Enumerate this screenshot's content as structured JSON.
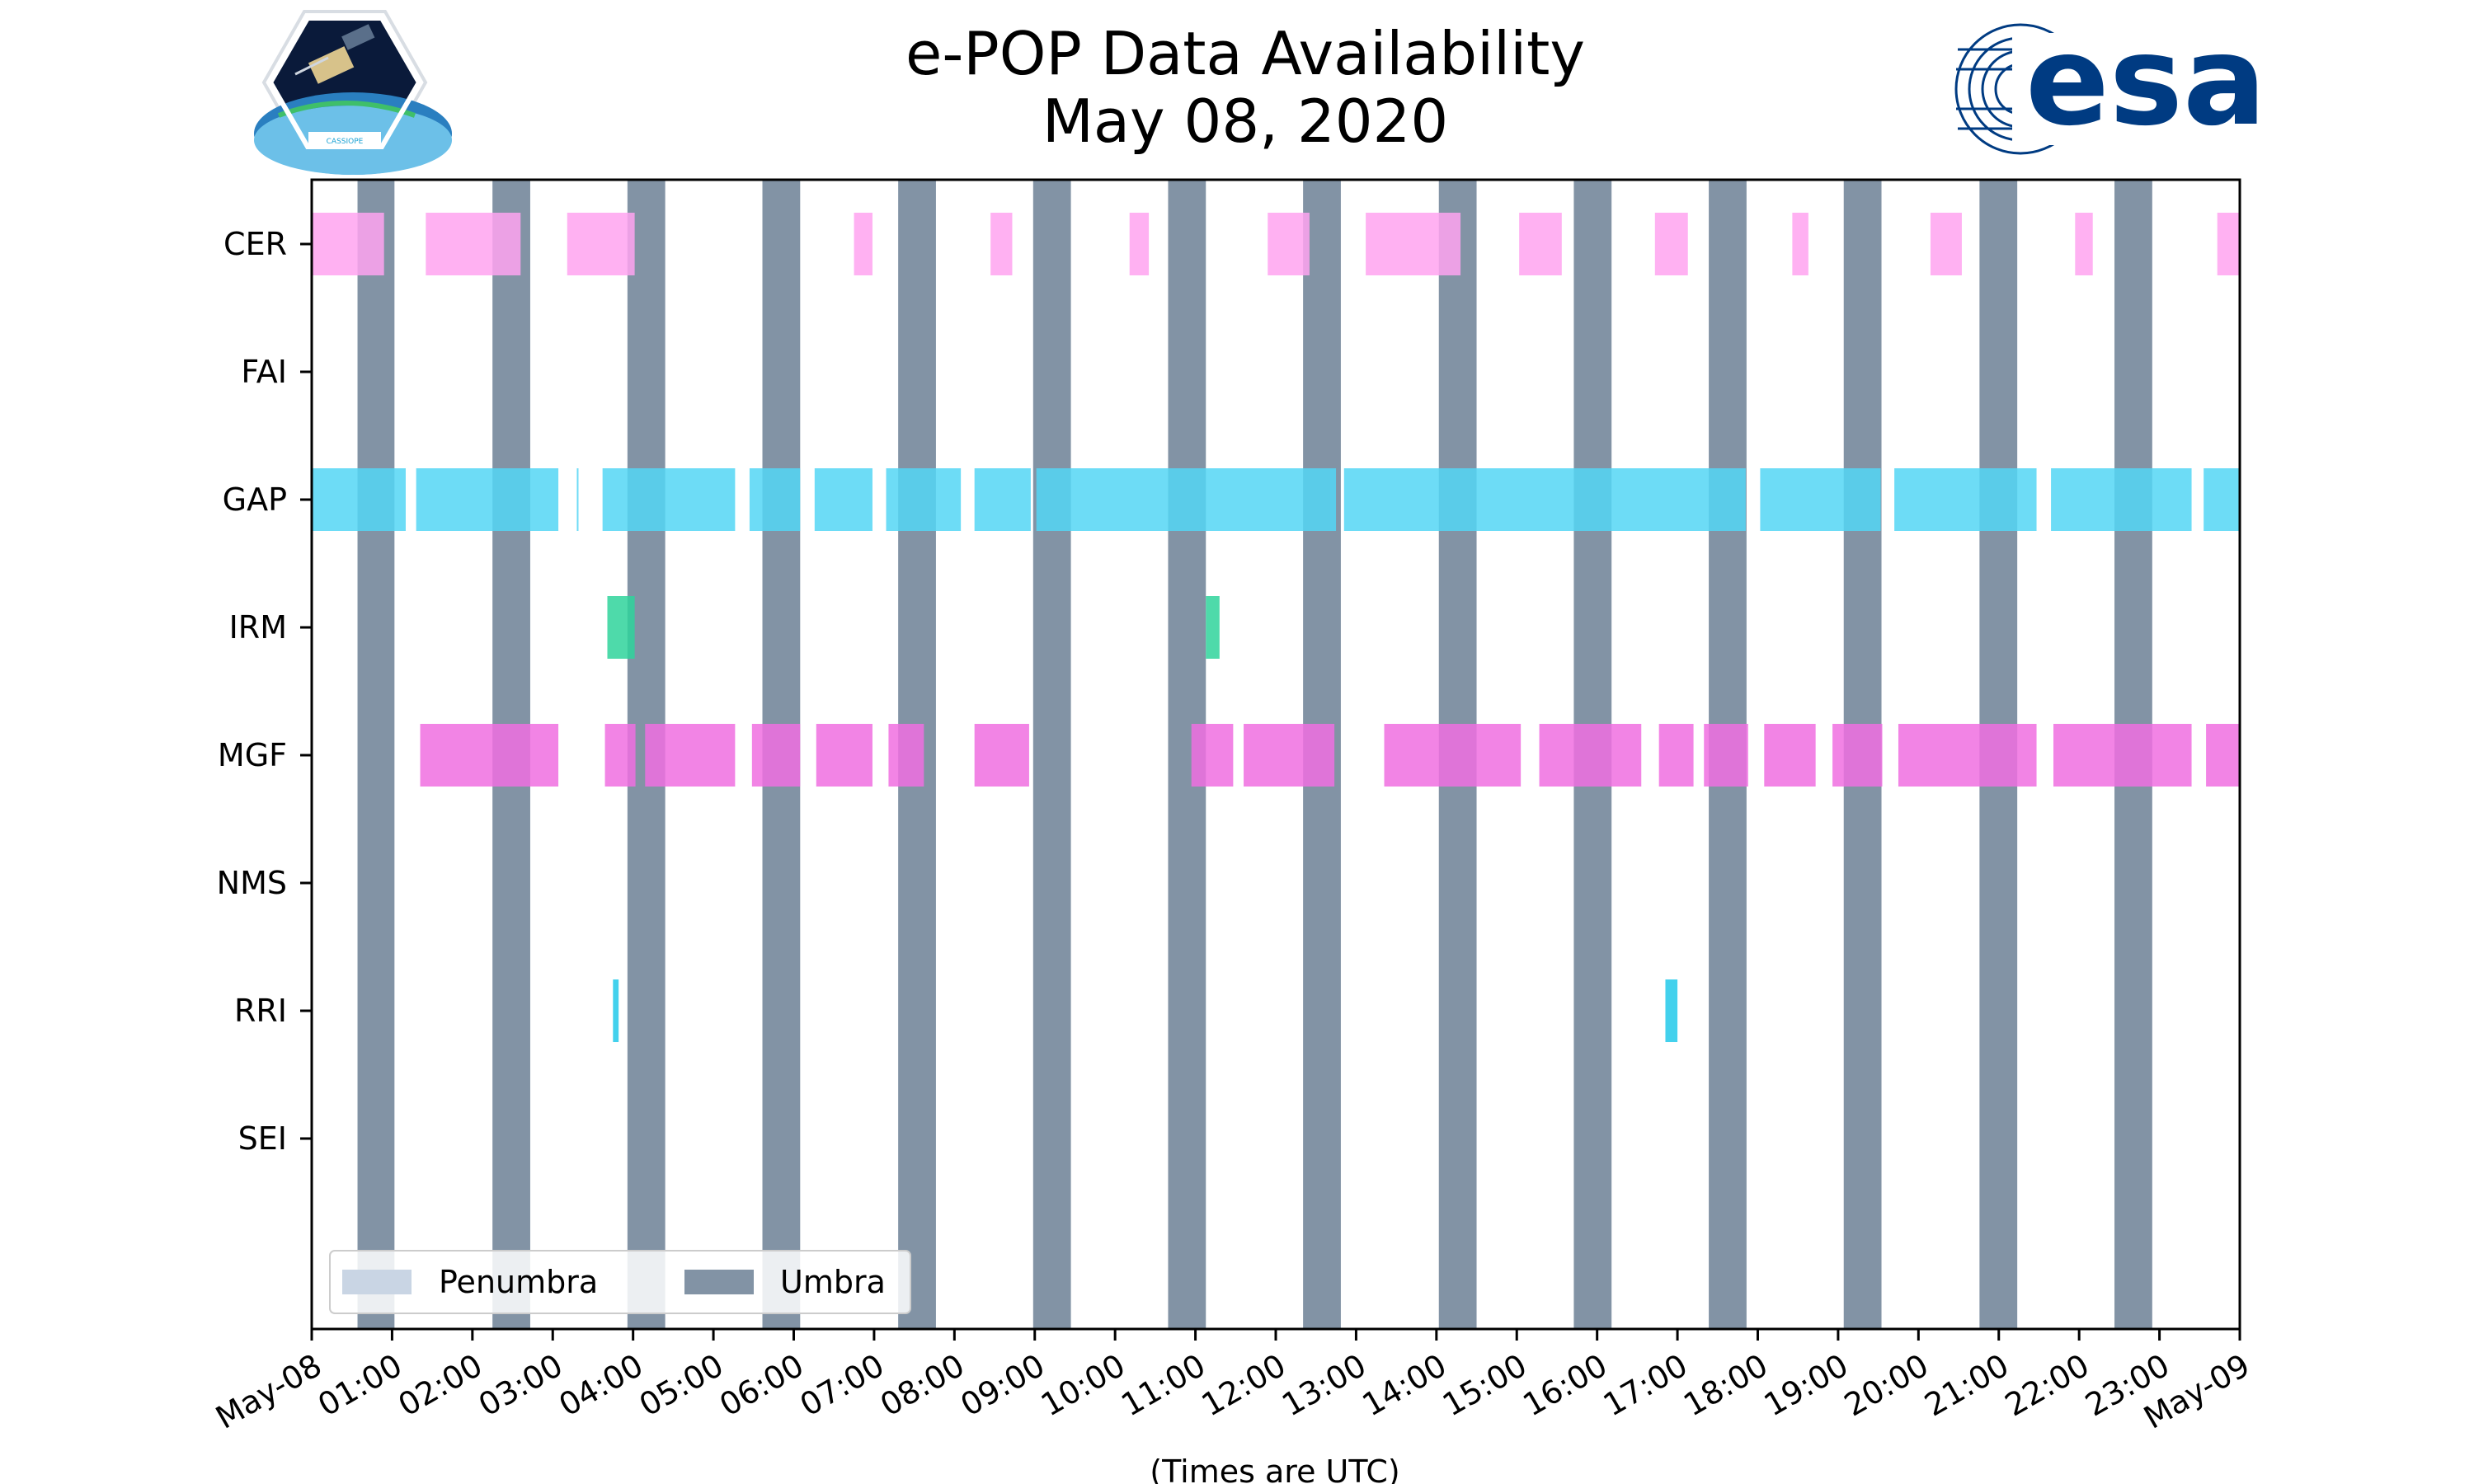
{
  "header": {
    "title_line1": "e-POP Data Availability",
    "title_line2": "May 08, 2020",
    "logo_left_text": "CASSIOPE",
    "logo_right_text": "esa"
  },
  "colors": {
    "umbra": "#8293a5",
    "penumbra": "#c9d5e4",
    "CER": "#ffa3f0",
    "GAP": "#53d6f5",
    "IRM": "#2fd39b",
    "MGF": "#f06fe0",
    "RRI": "#22c9ea",
    "esa_blue": "#003b82"
  },
  "chart_data": {
    "type": "timeline",
    "title": "e-POP Data Availability May 08, 2020",
    "xlabel": "(Times are UTC)",
    "x_unit": "hours",
    "xlim": [
      0,
      24
    ],
    "x_ticks": [
      {
        "value": 0,
        "label": "May-08"
      },
      {
        "value": 1,
        "label": "01:00"
      },
      {
        "value": 2,
        "label": "02:00"
      },
      {
        "value": 3,
        "label": "03:00"
      },
      {
        "value": 4,
        "label": "04:00"
      },
      {
        "value": 5,
        "label": "05:00"
      },
      {
        "value": 6,
        "label": "06:00"
      },
      {
        "value": 7,
        "label": "07:00"
      },
      {
        "value": 8,
        "label": "08:00"
      },
      {
        "value": 9,
        "label": "09:00"
      },
      {
        "value": 10,
        "label": "10:00"
      },
      {
        "value": 11,
        "label": "11:00"
      },
      {
        "value": 12,
        "label": "12:00"
      },
      {
        "value": 13,
        "label": "13:00"
      },
      {
        "value": 14,
        "label": "14:00"
      },
      {
        "value": 15,
        "label": "15:00"
      },
      {
        "value": 16,
        "label": "16:00"
      },
      {
        "value": 17,
        "label": "17:00"
      },
      {
        "value": 18,
        "label": "18:00"
      },
      {
        "value": 19,
        "label": "19:00"
      },
      {
        "value": 20,
        "label": "20:00"
      },
      {
        "value": 21,
        "label": "21:00"
      },
      {
        "value": 22,
        "label": "22:00"
      },
      {
        "value": 23,
        "label": "23:00"
      },
      {
        "value": 24,
        "label": "May-09"
      }
    ],
    "instruments": [
      "CER",
      "FAI",
      "GAP",
      "IRM",
      "MGF",
      "NMS",
      "RRI",
      "SEI"
    ],
    "legend": {
      "location": "lower-left",
      "entries": [
        {
          "label": "Penumbra",
          "color_key": "penumbra"
        },
        {
          "label": "Umbra",
          "color_key": "umbra"
        }
      ]
    },
    "umbra": [
      [
        0.57,
        1.03
      ],
      [
        2.25,
        2.72
      ],
      [
        3.93,
        4.4
      ],
      [
        5.61,
        6.08
      ],
      [
        7.3,
        7.77
      ],
      [
        8.98,
        9.45
      ],
      [
        10.66,
        11.13
      ],
      [
        12.34,
        12.81
      ],
      [
        14.03,
        14.5
      ],
      [
        15.71,
        16.18
      ],
      [
        17.39,
        17.86
      ],
      [
        19.07,
        19.54
      ],
      [
        20.76,
        21.23
      ],
      [
        22.44,
        22.91
      ]
    ],
    "availability": {
      "CER": [
        [
          0.0,
          0.9
        ],
        [
          1.42,
          2.6
        ],
        [
          3.18,
          4.02
        ],
        [
          6.75,
          6.98
        ],
        [
          8.45,
          8.72
        ],
        [
          10.18,
          10.42
        ],
        [
          11.9,
          12.42
        ],
        [
          13.12,
          14.3
        ],
        [
          15.03,
          15.56
        ],
        [
          16.72,
          17.13
        ],
        [
          18.43,
          18.63
        ],
        [
          20.15,
          20.54
        ],
        [
          21.95,
          22.17
        ],
        [
          23.72,
          24.0
        ]
      ],
      "FAI": [],
      "GAP": [
        [
          0.0,
          1.17
        ],
        [
          1.3,
          3.07
        ],
        [
          3.3,
          3.32
        ],
        [
          3.62,
          5.27
        ],
        [
          5.45,
          6.08
        ],
        [
          6.26,
          6.98
        ],
        [
          7.15,
          8.08
        ],
        [
          8.25,
          8.95
        ],
        [
          9.02,
          12.75
        ],
        [
          12.85,
          17.85
        ],
        [
          18.03,
          19.53
        ],
        [
          19.7,
          21.47
        ],
        [
          21.65,
          23.4
        ],
        [
          23.55,
          24.0
        ]
      ],
      "IRM": [
        [
          3.68,
          4.02
        ],
        [
          11.13,
          11.3
        ]
      ],
      "MGF": [
        [
          1.35,
          3.07
        ],
        [
          3.65,
          4.03
        ],
        [
          4.15,
          5.27
        ],
        [
          5.48,
          6.08
        ],
        [
          6.28,
          6.98
        ],
        [
          7.18,
          7.62
        ],
        [
          8.25,
          8.93
        ],
        [
          10.95,
          11.47
        ],
        [
          11.6,
          12.73
        ],
        [
          13.35,
          15.05
        ],
        [
          15.28,
          16.55
        ],
        [
          16.77,
          17.2
        ],
        [
          17.33,
          17.88
        ],
        [
          18.08,
          18.72
        ],
        [
          18.93,
          19.55
        ],
        [
          19.75,
          21.47
        ],
        [
          21.68,
          23.4
        ],
        [
          23.58,
          24.0
        ]
      ],
      "NMS": [],
      "RRI": [
        [
          3.75,
          3.82
        ],
        [
          16.85,
          17.0
        ]
      ],
      "SEI": []
    }
  }
}
